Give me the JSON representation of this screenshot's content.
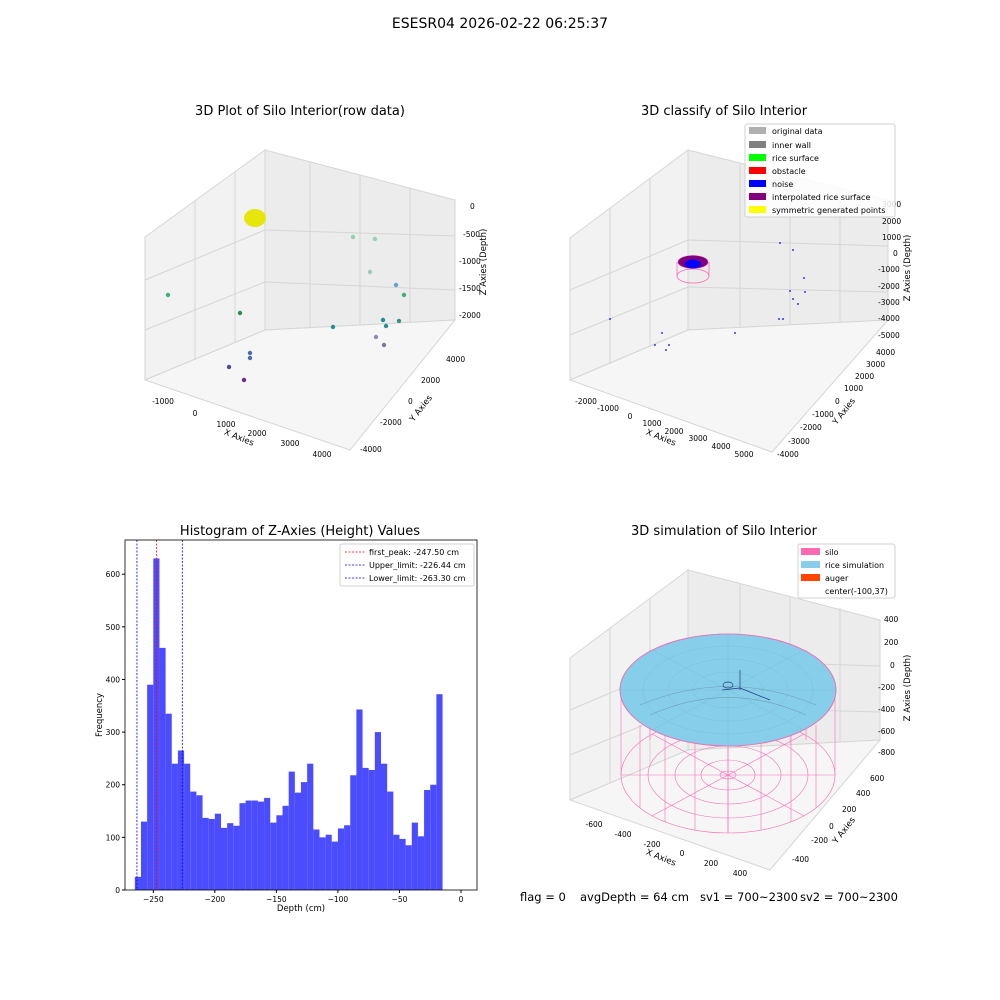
{
  "figure": {
    "suptitle": "ESESR04 2026-02-22 06:25:37"
  },
  "colors": {
    "original": "#b0b0b0",
    "inner_wall": "#808080",
    "rice_surface": "#00ff00",
    "obstacle": "#ff0000",
    "noise": "#0000ff",
    "interp": "#800080",
    "symmetric": "#ffff00",
    "silo": "#ff69b4",
    "rice_sim": "#87ceeb",
    "auger": "#ff4500",
    "hist_bar": "#4c4cff"
  },
  "chart_data": [
    {
      "type": "scatter",
      "title": "3D Plot of Silo Interior(row data)",
      "xlabel": "X Axies",
      "ylabel": "Y Axies",
      "zlabel": "Z Axies (Depth)",
      "x_ticks": [
        "-1000",
        "0",
        "1000",
        "2000",
        "3000",
        "4000"
      ],
      "y_ticks": [
        "-4000",
        "-2000",
        "0",
        "2000",
        "4000"
      ],
      "z_ticks": [
        "0",
        "-500",
        "-1000",
        "-1500",
        "-2000"
      ]
    },
    {
      "type": "scatter",
      "title": "3D classify of Silo Interior",
      "xlabel": "X Axies",
      "ylabel": "Y Axies",
      "zlabel": "Z Axies (Depth)",
      "legend": [
        "original data",
        "inner wall",
        "rice surface",
        "obstacle",
        "noise",
        "interpolated rice surface",
        "symmetric generated points"
      ],
      "legend_position": "top-right",
      "x_ticks": [
        "-2000",
        "-1000",
        "0",
        "1000",
        "2000",
        "3000",
        "4000",
        "5000"
      ],
      "y_ticks": [
        "-4000",
        "-3000",
        "-2000",
        "-1000",
        "0",
        "1000",
        "2000",
        "3000",
        "4000"
      ],
      "z_ticks": [
        "3000",
        "2000",
        "1000",
        "0",
        "-1000",
        "-2000",
        "-3000",
        "-4000",
        "-5000"
      ]
    },
    {
      "type": "bar",
      "title": "Histogram of Z-Axies (Height) Values",
      "xlabel": "Depth (cm)",
      "ylabel": "Frequency",
      "xlim": [
        -273,
        13
      ],
      "ylim": [
        0,
        665
      ],
      "x_ticks": [
        -250,
        -200,
        -150,
        -100,
        -50,
        0
      ],
      "x_tick_labels": [
        "−250",
        "−200",
        "−150",
        "−100",
        "−50",
        "0"
      ],
      "y_ticks": [
        0,
        100,
        200,
        300,
        400,
        500,
        600
      ],
      "bin_start": -265,
      "bin_width": 5,
      "values": [
        25,
        130,
        390,
        630,
        460,
        335,
        240,
        265,
        240,
        187,
        180,
        137,
        135,
        145,
        118,
        127,
        122,
        165,
        170,
        170,
        168,
        175,
        128,
        142,
        160,
        225,
        185,
        205,
        240,
        115,
        100,
        105,
        92,
        117,
        123,
        218,
        343,
        232,
        228,
        300,
        240,
        187,
        105,
        97,
        85,
        128,
        102,
        190,
        200,
        372
      ],
      "lines": [
        {
          "label": "first_peak: -247.50 cm",
          "x": -247.5,
          "color": "#ff0000"
        },
        {
          "label": "Upper_limit: -226.44 cm",
          "x": -226.44,
          "color": "#0000ff"
        },
        {
          "label": "Lower_limit: -263.30 cm",
          "x": -263.3,
          "color": "#0000ff"
        }
      ],
      "legend_position": "top-right"
    },
    {
      "type": "surface",
      "title": "3D simulation of Silo Interior",
      "xlabel": "X Axies",
      "ylabel": "Y Axies",
      "zlabel": "Z Axies (Depth)",
      "legend": [
        "silo",
        "rice simulation",
        "auger",
        "center(-100,37)"
      ],
      "legend_position": "top-right",
      "x_ticks": [
        "-600",
        "-400",
        "-200",
        "0",
        "200",
        "400"
      ],
      "y_ticks": [
        "-400",
        "-200",
        "0",
        "200",
        "400",
        "600"
      ],
      "z_ticks": [
        "400",
        "200",
        "0",
        "-200",
        "-400",
        "-600",
        "-800"
      ]
    }
  ],
  "footer": {
    "flag": "flag = 0",
    "avg": "avgDepth = 64 cm",
    "sv1": "sv1 = 700~2300",
    "sv2": "sv2 = 700~2300"
  }
}
